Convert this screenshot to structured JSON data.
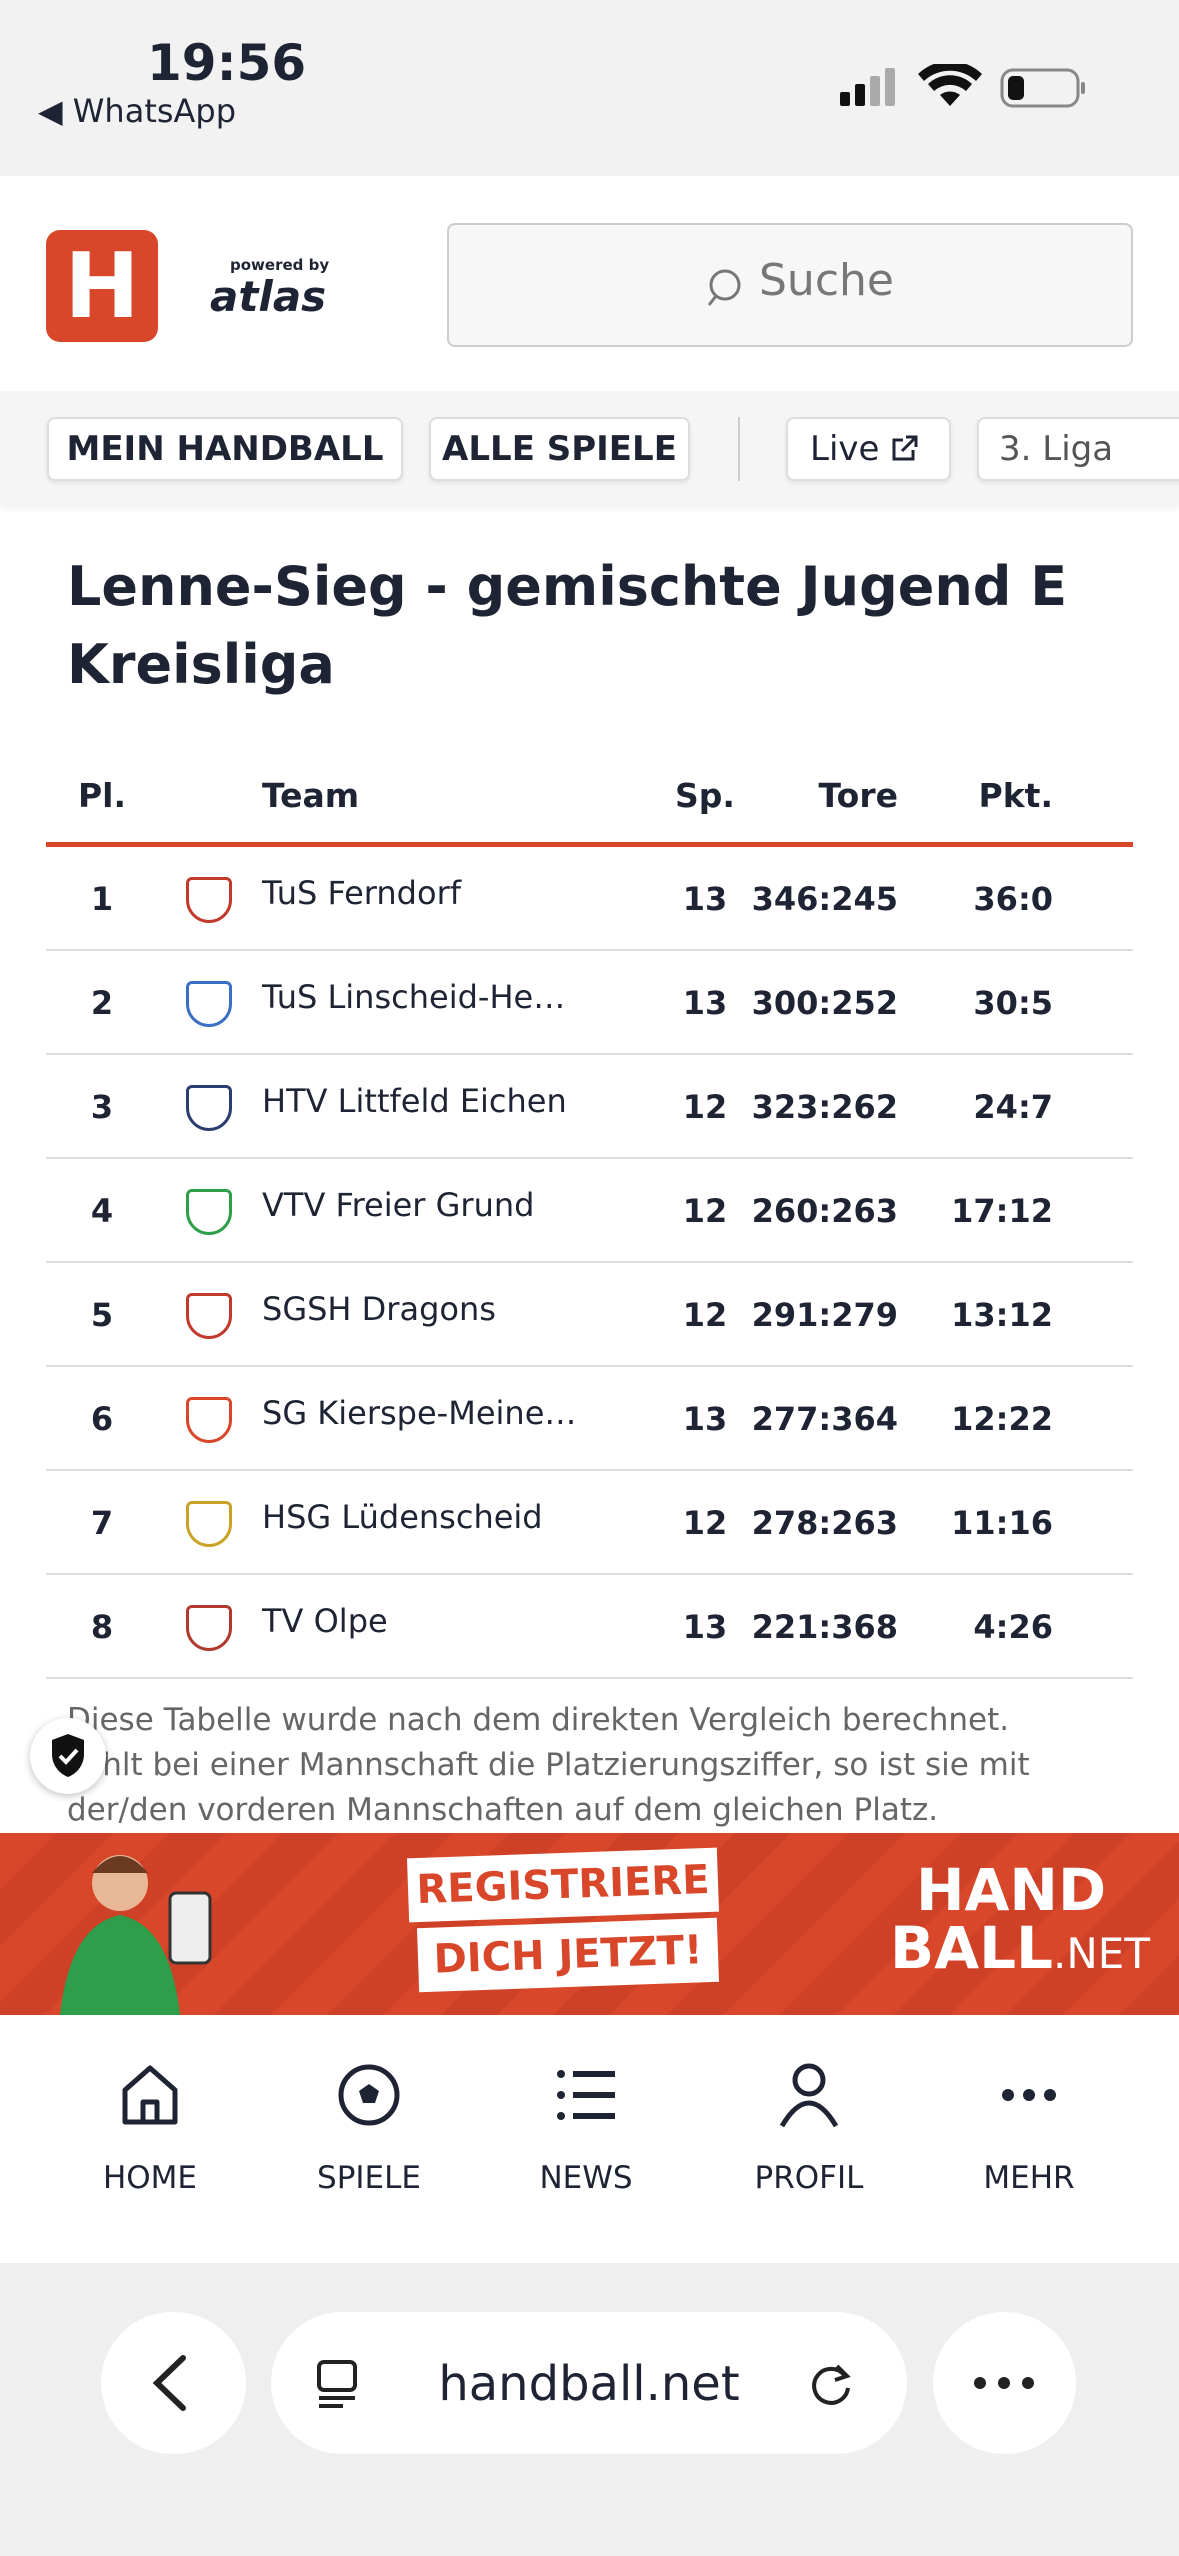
{
  "status_bar": {
    "time": "19:56",
    "back_app": "◀ WhatsApp"
  },
  "header": {
    "logo": "H",
    "powered_by": "powered by",
    "brand": "atlas",
    "search_placeholder": "Suche"
  },
  "nav": {
    "buttons": [
      "MEIN HANDBALL",
      "ALLE SPIELE"
    ],
    "tabs": [
      "Live",
      "3. Liga"
    ]
  },
  "title": [
    "Lenne-Sieg - gemischte Jugend E",
    "Kreisliga"
  ],
  "table": {
    "columns": [
      "Pl.",
      "Team",
      "Sp.",
      "Tore",
      "Pkt."
    ],
    "rows": [
      [
        "1",
        "TuS Ferndorf",
        "13",
        "346:245",
        "36:0"
      ],
      [
        "2",
        "TuS Linscheid-He…",
        "13",
        "300:252",
        "30:5"
      ],
      [
        "3",
        "HTV Littfeld Eichen",
        "12",
        "323:262",
        "24:7"
      ],
      [
        "4",
        "VTV Freier Grund",
        "12",
        "260:263",
        "17:12"
      ],
      [
        "5",
        "SGSH Dragons",
        "12",
        "291:279",
        "13:12"
      ],
      [
        "6",
        "SG Kierspe-Meine…",
        "13",
        "277:364",
        "12:22"
      ],
      [
        "7",
        "HSG Lüdenscheid",
        "12",
        "278:263",
        "11:16"
      ],
      [
        "8",
        "TV Olpe",
        "13",
        "221:368",
        "4:26"
      ]
    ]
  },
  "note": [
    "Diese Tabelle wurde nach dem direkten Vergleich berechnet.",
    "Fehlt bei einer Mannschaft die Platzierungsziffer, so ist sie mit",
    "der/den vorderen Mannschaften auf dem gleichen Platz."
  ],
  "banner": {
    "cta": [
      "REGISTRIERE",
      "DICH JETZT!"
    ],
    "brand": [
      "HAND",
      "BALL",
      ".NET"
    ]
  },
  "bottom_nav": [
    "HOME",
    "SPIELE",
    "NEWS",
    "PROFIL",
    "MEHR"
  ],
  "browser": {
    "url": "handball.net"
  }
}
